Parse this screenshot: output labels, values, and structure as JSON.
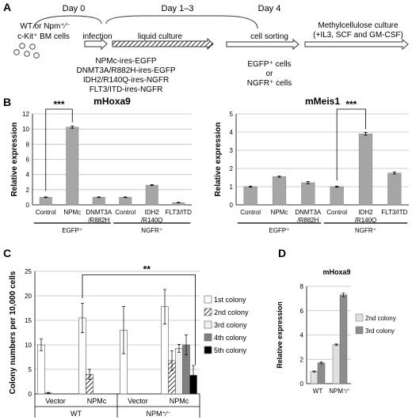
{
  "panel_a": {
    "letter": "A",
    "day0": "Day 0",
    "day13": "Day 1–3",
    "day4": "Day 4",
    "cells_line1": "WT or Npm⁺⁄⁻",
    "cells_line2": "c-Kit⁺ BM cells",
    "infection": "infection",
    "liquid_culture": "liquid culture",
    "cell_sorting": "cell sorting",
    "methyl_line1": "Methylcellulose culture",
    "methyl_line2": "(+IL3, SCF and GM-CSF)",
    "constructs": [
      "NPMc-ires-EGFP",
      "DNMT3A/R882H-ires-EGFP",
      "IDH2/R140Q-ires-NGFR",
      "FLT3/ITD-ires-NGFR"
    ],
    "sort_line1": "EGFP⁺ cells",
    "sort_line2": "or",
    "sort_line3": "NGFR⁺ cells"
  },
  "panel_b": {
    "letter": "B"
  },
  "panel_c": {
    "letter": "C"
  },
  "panel_d": {
    "letter": "D"
  },
  "chart_data": [
    {
      "id": "b1",
      "type": "bar",
      "title": "mHoxa9",
      "ylabel": "Relative expression",
      "ylim": [
        0,
        12
      ],
      "yticks": [
        0,
        2,
        4,
        6,
        8,
        10,
        12
      ],
      "categories": [
        "Control",
        "NPMc",
        "DNMT3A\n/R882H",
        "Control",
        "IDH2\n/R140Q",
        "FLT3/ITD"
      ],
      "values": [
        1.0,
        10.25,
        1.0,
        1.0,
        2.6,
        0.3
      ],
      "errors": [
        0.05,
        0.15,
        0.05,
        0.05,
        0.07,
        0.04
      ],
      "groups": [
        {
          "label": "EGFP⁺",
          "from": 0,
          "to": 2
        },
        {
          "label": "NGFR⁺",
          "from": 3,
          "to": 5
        }
      ],
      "significance": [
        {
          "from": 0,
          "to": 1,
          "label": "***"
        }
      ],
      "color": "#a6a6a6"
    },
    {
      "id": "b2",
      "type": "bar",
      "title": "mMeis1",
      "ylabel": "Relative expression",
      "ylim": [
        0,
        5
      ],
      "yticks": [
        0,
        1,
        2,
        3,
        4,
        5
      ],
      "categories": [
        "Control",
        "NPMc",
        "DNMT3A\n/R882H",
        "Control",
        "IDH2\n/R140Q",
        "FLT3/ITD"
      ],
      "values": [
        1.0,
        1.55,
        1.22,
        1.0,
        3.9,
        1.75
      ],
      "errors": [
        0.03,
        0.03,
        0.06,
        0.03,
        0.08,
        0.06
      ],
      "groups": [
        {
          "label": "EGFP⁺",
          "from": 0,
          "to": 2
        },
        {
          "label": "NGFR⁺",
          "from": 3,
          "to": 5
        }
      ],
      "significance": [
        {
          "from": 3,
          "to": 4,
          "label": "***"
        }
      ],
      "color": "#a6a6a6"
    },
    {
      "id": "c",
      "type": "bar",
      "ylabel": "Colony numbers per 10,000 cells",
      "ylim": [
        0,
        25
      ],
      "yticks": [
        0,
        5,
        10,
        15,
        20,
        25
      ],
      "categories": [
        "Vector",
        "NPMc",
        "Vector",
        "NPMc"
      ],
      "groups": [
        {
          "label": "WT",
          "from": 0,
          "to": 1
        },
        {
          "label": "NPM⁺⁄⁻",
          "from": 2,
          "to": 3
        }
      ],
      "series": [
        {
          "name": "1st colony",
          "values": [
            10.0,
            15.5,
            13.0,
            17.8
          ],
          "errors": [
            1.2,
            3.0,
            4.8,
            3.5
          ]
        },
        {
          "name": "2nd colony",
          "values": [
            0.2,
            4.0,
            null,
            6.8
          ],
          "errors": [
            0.1,
            1.0,
            null,
            2.0
          ]
        },
        {
          "name": "3rd colony",
          "values": [
            null,
            null,
            null,
            9.3
          ],
          "errors": [
            null,
            null,
            null,
            0.8
          ]
        },
        {
          "name": "4th colony",
          "values": [
            null,
            null,
            null,
            10.0
          ],
          "errors": [
            null,
            null,
            null,
            2.0
          ]
        },
        {
          "name": "5th colony",
          "values": [
            null,
            null,
            null,
            3.8
          ],
          "errors": [
            null,
            null,
            null,
            2.0
          ]
        }
      ],
      "significance": [
        {
          "label": "**"
        }
      ]
    },
    {
      "id": "d",
      "type": "bar",
      "title": "mHoxa9",
      "ylabel": "Relative expression",
      "ylim": [
        0,
        8
      ],
      "yticks": [
        0,
        2,
        4,
        6,
        8
      ],
      "categories": [
        "WT",
        "NPM⁺⁄⁻"
      ],
      "series": [
        {
          "name": "2nd colony",
          "values": [
            1.0,
            3.2
          ],
          "errors": [
            0.04,
            0.06
          ],
          "color": "#e0e0e0"
        },
        {
          "name": "3rd colony",
          "values": [
            1.7,
            7.3
          ],
          "errors": [
            0.07,
            0.15
          ],
          "color": "#8c8c8c"
        }
      ]
    }
  ]
}
